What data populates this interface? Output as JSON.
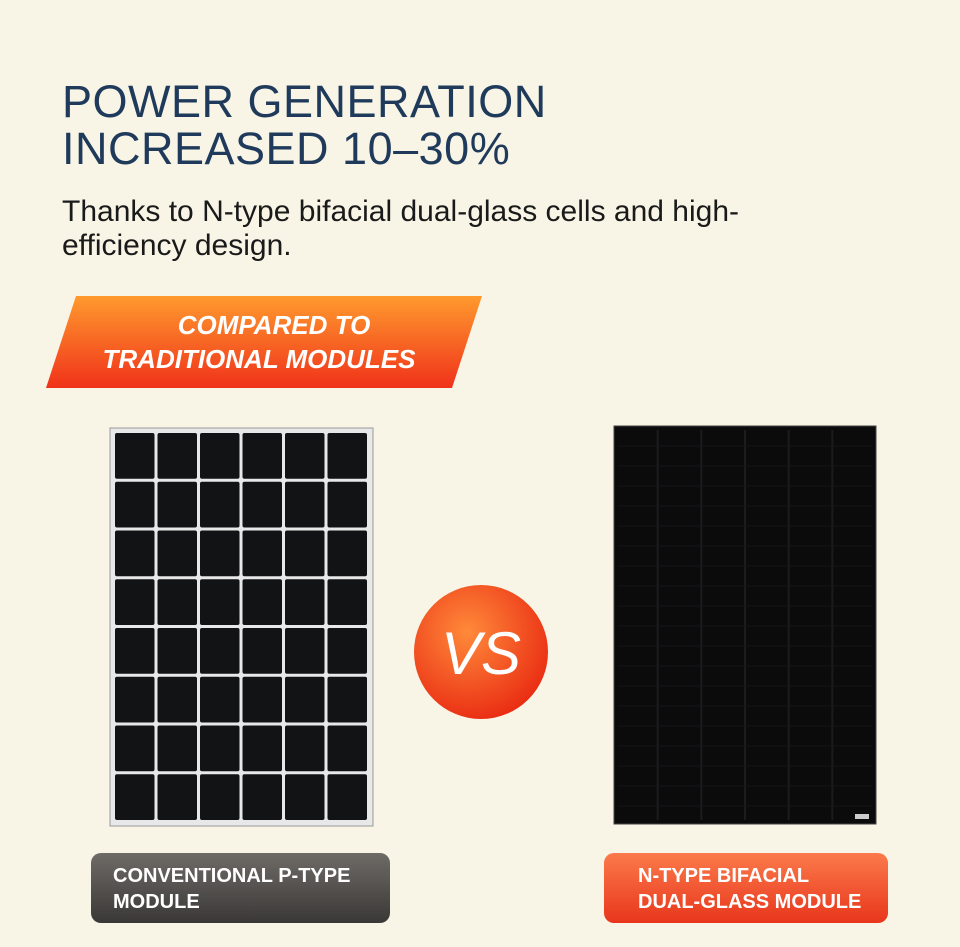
{
  "header": {
    "title": [
      "POWER GENERATION",
      "INCREASED 10–30%"
    ],
    "subtitle": "Thanks to N-type bifacial dual-glass cells and high-efficiency design."
  },
  "banner": [
    "COMPARED TO",
    "TRADITIONAL MODULES"
  ],
  "comparison": {
    "vs": "VS",
    "left_label": [
      "CONVENTIONAL P-TYPE",
      "MODULE"
    ],
    "right_label": [
      "N-TYPE BIFACIAL",
      "DUAL-GLASS MODULE"
    ]
  }
}
